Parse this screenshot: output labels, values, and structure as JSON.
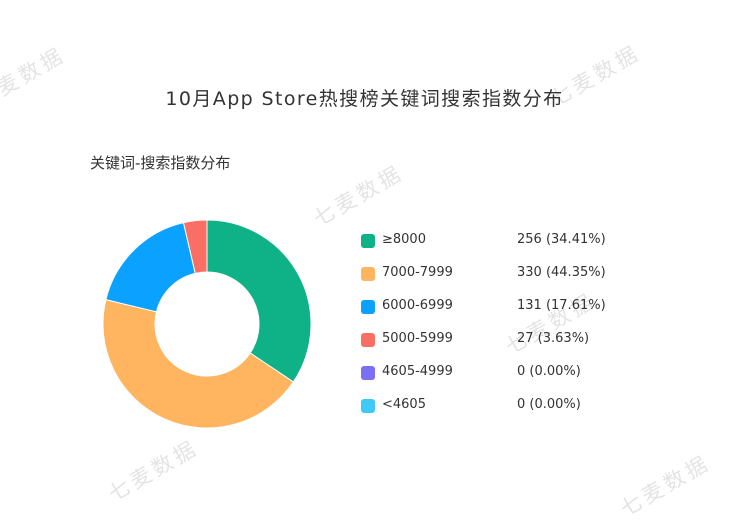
{
  "title": "10月App Store热搜榜关键词搜索指数分布",
  "subtitle": "关键词-搜索指数分布",
  "watermark_text": "七麦数据",
  "chart_data": {
    "type": "pie",
    "donut": true,
    "categories": [
      "≥8000",
      "7000-7999",
      "6000-6999",
      "5000-5999",
      "4605-4999",
      "<4605"
    ],
    "values": [
      256,
      330,
      131,
      27,
      0,
      0
    ],
    "percentages": [
      "34.41%",
      "44.35%",
      "17.61%",
      "3.63%",
      "0.00%",
      "0.00%"
    ],
    "colors": [
      "#0fb287",
      "#ffb45f",
      "#0aa1ff",
      "#f96f63",
      "#7b6ff6",
      "#3fc9f6"
    ],
    "legend_position": "right",
    "legend": [
      {
        "label": "≥8000",
        "value_text": "256 (34.41%)",
        "color": "#0fb287"
      },
      {
        "label": "7000-7999",
        "value_text": "330 (44.35%)",
        "color": "#ffb45f"
      },
      {
        "label": "6000-6999",
        "value_text": "131 (17.61%)",
        "color": "#0aa1ff"
      },
      {
        "label": "5000-5999",
        "value_text": "27 (3.63%)",
        "color": "#f96f63"
      },
      {
        "label": "4605-4999",
        "value_text": "0 (0.00%)",
        "color": "#7b6ff6"
      },
      {
        "label": "<4605",
        "value_text": "0 (0.00%)",
        "color": "#3fc9f6"
      }
    ]
  }
}
